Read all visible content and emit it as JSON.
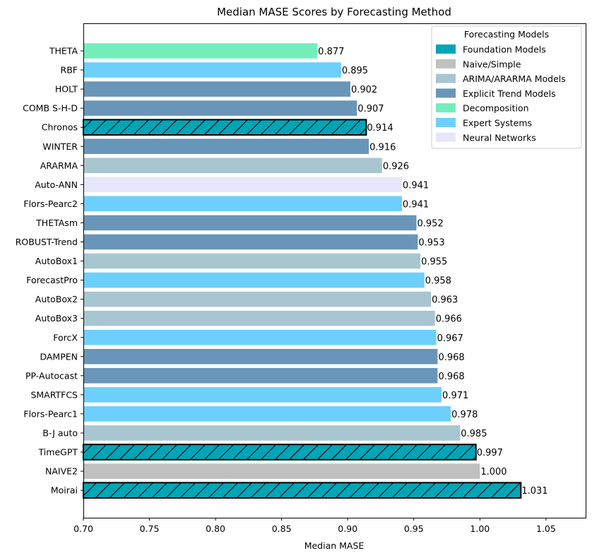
{
  "chart_data": {
    "type": "bar",
    "orientation": "horizontal",
    "title": "Median MASE Scores by Forecasting Method",
    "xlabel": "Median MASE",
    "ylabel": "",
    "xlim": [
      0.7,
      1.08
    ],
    "xticks": [
      "0.70",
      "0.75",
      "0.80",
      "0.85",
      "0.90",
      "0.95",
      "1.00",
      "1.05"
    ],
    "xtick_values": [
      0.7,
      0.75,
      0.8,
      0.85,
      0.9,
      0.95,
      1.0,
      1.05
    ],
    "grid": false,
    "legend": {
      "title": "Forecasting Models",
      "placement": "top-right",
      "entries": [
        {
          "label": "Foundation Models",
          "color": "#00a5b8"
        },
        {
          "label": "Naive/Simple",
          "color": "#c0c0c0"
        },
        {
          "label": "ARIMA/ARARMA Models",
          "color": "#a8c6d0"
        },
        {
          "label": "Explicit Trend Models",
          "color": "#6996b8"
        },
        {
          "label": "Decomposition",
          "color": "#74eebb"
        },
        {
          "label": "Expert Systems",
          "color": "#6dcffb"
        },
        {
          "label": "Neural Networks",
          "color": "#e6e6fa"
        }
      ]
    },
    "bars": [
      {
        "label": "THETA",
        "value": 0.877,
        "value_label": "0.877",
        "group": "Decomposition",
        "color": "#74eebb",
        "hatched": false
      },
      {
        "label": "RBF",
        "value": 0.895,
        "value_label": "0.895",
        "group": "Expert Systems",
        "color": "#6dcffb",
        "hatched": false
      },
      {
        "label": "HOLT",
        "value": 0.902,
        "value_label": "0.902",
        "group": "Explicit Trend Models",
        "color": "#6996b8",
        "hatched": false
      },
      {
        "label": "COMB S-H-D",
        "value": 0.907,
        "value_label": "0.907",
        "group": "Explicit Trend Models",
        "color": "#6996b8",
        "hatched": false
      },
      {
        "label": "Chronos",
        "value": 0.914,
        "value_label": "0.914",
        "group": "Foundation Models",
        "color": "#00a5b8",
        "hatched": true
      },
      {
        "label": "WINTER",
        "value": 0.916,
        "value_label": "0.916",
        "group": "Explicit Trend Models",
        "color": "#6996b8",
        "hatched": false
      },
      {
        "label": "ARARMA",
        "value": 0.926,
        "value_label": "0.926",
        "group": "ARIMA/ARARMA Models",
        "color": "#a8c6d0",
        "hatched": false
      },
      {
        "label": "Auto-ANN",
        "value": 0.941,
        "value_label": "0.941",
        "group": "Neural Networks",
        "color": "#e6e6fa",
        "hatched": false
      },
      {
        "label": "Flors-Pearc2",
        "value": 0.941,
        "value_label": "0.941",
        "group": "Expert Systems",
        "color": "#6dcffb",
        "hatched": false
      },
      {
        "label": "THETAsm",
        "value": 0.952,
        "value_label": "0.952",
        "group": "Explicit Trend Models",
        "color": "#6996b8",
        "hatched": false
      },
      {
        "label": "ROBUST-Trend",
        "value": 0.953,
        "value_label": "0.953",
        "group": "Explicit Trend Models",
        "color": "#6996b8",
        "hatched": false
      },
      {
        "label": "AutoBox1",
        "value": 0.955,
        "value_label": "0.955",
        "group": "ARIMA/ARARMA Models",
        "color": "#a8c6d0",
        "hatched": false
      },
      {
        "label": "ForecastPro",
        "value": 0.958,
        "value_label": "0.958",
        "group": "Expert Systems",
        "color": "#6dcffb",
        "hatched": false
      },
      {
        "label": "AutoBox2",
        "value": 0.963,
        "value_label": "0.963",
        "group": "ARIMA/ARARMA Models",
        "color": "#a8c6d0",
        "hatched": false
      },
      {
        "label": "AutoBox3",
        "value": 0.966,
        "value_label": "0.966",
        "group": "ARIMA/ARARMA Models",
        "color": "#a8c6d0",
        "hatched": false
      },
      {
        "label": "ForcX",
        "value": 0.967,
        "value_label": "0.967",
        "group": "Expert Systems",
        "color": "#6dcffb",
        "hatched": false
      },
      {
        "label": "DAMPEN",
        "value": 0.968,
        "value_label": "0.968",
        "group": "Explicit Trend Models",
        "color": "#6996b8",
        "hatched": false
      },
      {
        "label": "PP-Autocast",
        "value": 0.968,
        "value_label": "0.968",
        "group": "Explicit Trend Models",
        "color": "#6996b8",
        "hatched": false
      },
      {
        "label": "SMARTFCS",
        "value": 0.971,
        "value_label": "0.971",
        "group": "Expert Systems",
        "color": "#6dcffb",
        "hatched": false
      },
      {
        "label": "Flors-Pearc1",
        "value": 0.978,
        "value_label": "0.978",
        "group": "Expert Systems",
        "color": "#6dcffb",
        "hatched": false
      },
      {
        "label": "B-J auto",
        "value": 0.985,
        "value_label": "0.985",
        "group": "ARIMA/ARARMA Models",
        "color": "#a8c6d0",
        "hatched": false
      },
      {
        "label": "TimeGPT",
        "value": 0.997,
        "value_label": "0.997",
        "group": "Foundation Models",
        "color": "#00a5b8",
        "hatched": true
      },
      {
        "label": "NAIVE2",
        "value": 1.0,
        "value_label": "1.000",
        "group": "Naive/Simple",
        "color": "#c0c0c0",
        "hatched": false
      },
      {
        "label": "Moirai",
        "value": 1.031,
        "value_label": "1.031",
        "group": "Foundation Models",
        "color": "#00a5b8",
        "hatched": true
      }
    ]
  }
}
